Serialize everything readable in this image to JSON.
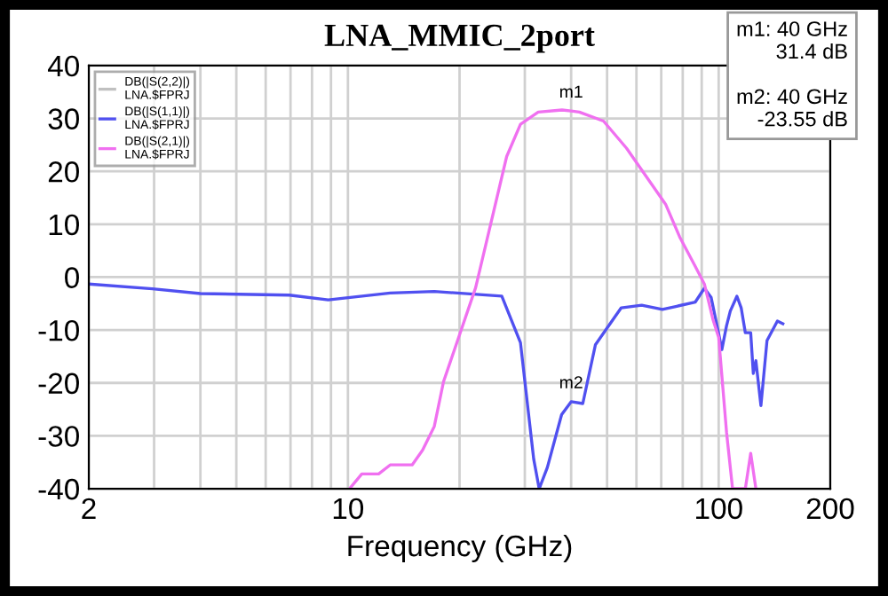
{
  "chart_data": {
    "type": "line",
    "title": "LNA_MMIC_2port",
    "xlabel": "Frequency (GHz)",
    "log": "x",
    "xlim": [
      2,
      200
    ],
    "xticks": [
      2,
      10,
      100,
      200
    ],
    "ylim": [
      -40,
      40
    ],
    "yticks": [
      -40,
      -30,
      -20,
      -10,
      0,
      10,
      20,
      30,
      40
    ],
    "grid": true,
    "legend": "top left",
    "series": [
      {
        "name": "DB(|S(2,2)|)\nLNA.$FPRJ",
        "color": "#c0c0c0"
      },
      {
        "name": "DB(|S(1,1)|)\nLNA.$FPRJ",
        "color": "#5050f0",
        "x": [
          2,
          2.97,
          4.0,
          6.95,
          8.85,
          13,
          17.1,
          26,
          29.2,
          31.7,
          32.8,
          34.5,
          37.7,
          40,
          43,
          46.5,
          54.6,
          62,
          70.5,
          77.1,
          86.5,
          91.5,
          95.4,
          99,
          102,
          105,
          107.5,
          112,
          115,
          118,
          122,
          124,
          126,
          130,
          135,
          144,
          149
        ],
        "values": [
          -1.3,
          -2.2,
          -3.1,
          -3.4,
          -4.3,
          -3,
          -2.7,
          -3.6,
          -12.4,
          -34.4,
          -40,
          -36,
          -26,
          -23.55,
          -23.9,
          -12.8,
          -5.8,
          -5.3,
          -6.1,
          -5.5,
          -4.7,
          -2.1,
          -3.8,
          -9.2,
          -13.7,
          -9.2,
          -6.4,
          -3.6,
          -5.8,
          -10.5,
          -10.5,
          -18.2,
          -15.8,
          -24.3,
          -12,
          -8.3,
          -8.8
        ]
      },
      {
        "name": "DB(|S(2,1)|)\nLNA.$FPRJ",
        "color": "#f070f0",
        "x": [
          10.1,
          10.9,
          12.1,
          13,
          14.9,
          15.9,
          17.1,
          18.1,
          22.1,
          26.8,
          29.2,
          32.6,
          37.8,
          40,
          42.1,
          48.9,
          56.4,
          71.9,
          78.5,
          86.5,
          91.5,
          96.5,
          100,
          105,
          109,
          118,
          122,
          126
        ],
        "values": [
          -40,
          -37.2,
          -37.2,
          -35.5,
          -35.5,
          -32.7,
          -28.2,
          -19.8,
          -2,
          22.8,
          28.9,
          31.2,
          31.6,
          31.4,
          31.2,
          29.5,
          24.4,
          13.8,
          7.6,
          2,
          -1.3,
          -8,
          -11.4,
          -29.3,
          -40,
          -40,
          -33.3,
          -40
        ]
      }
    ],
    "annotations": [
      {
        "text": "m1",
        "x": 40,
        "y": 31.4
      },
      {
        "text": "m2",
        "x": 40,
        "y": -23.55
      },
      "m1: 40 GHz\n31.4 dB\n\nm2: 40 GHz\n-23.55 dB"
    ]
  }
}
